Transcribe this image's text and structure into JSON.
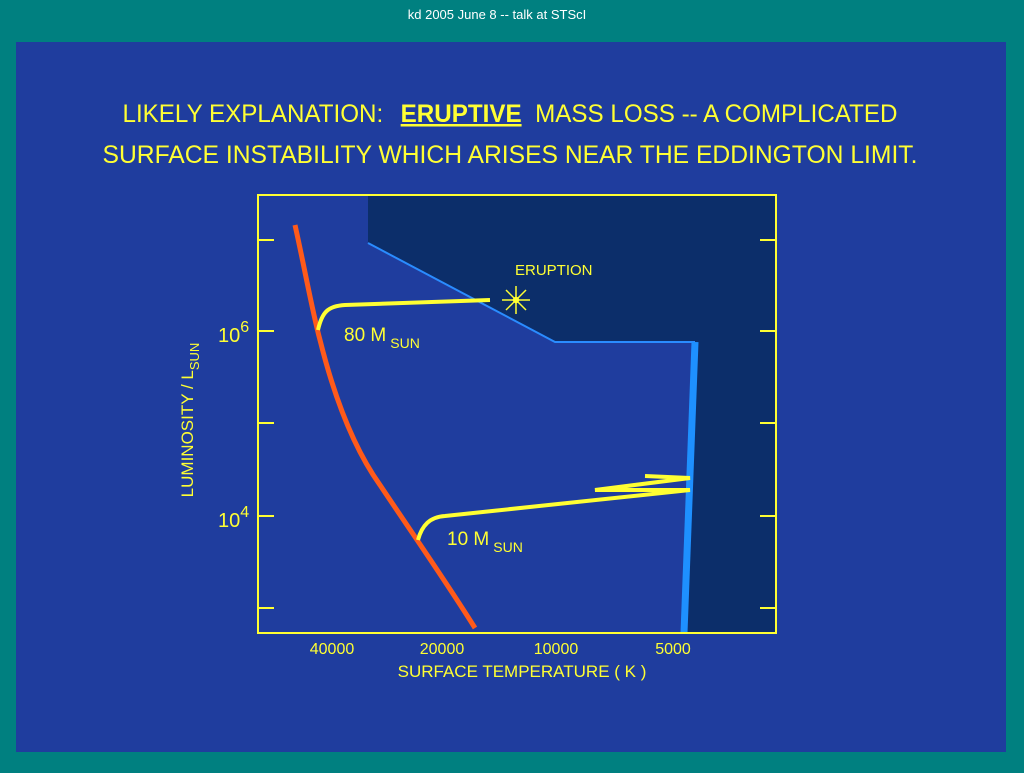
{
  "header": "kd  2005 June 8 -- talk at STScI",
  "title": {
    "line1_pre": "LIKELY  EXPLANATION:",
    "emphasis": "ERUPTIVE",
    "line1_post": "MASS  LOSS  -- A  COMPLICATED",
    "line2": "SURFACE  INSTABILITY  WHICH  ARISES  NEAR  THE  EDDINGTON  LIMIT."
  },
  "diagram": {
    "y_axis_label": {
      "main": "LUMINOSITY / L",
      "sub": "SUN"
    },
    "y_ticks": [
      {
        "base": "10",
        "exp": "6"
      },
      {
        "base": "10",
        "exp": "4"
      }
    ],
    "x_ticks": [
      "40000",
      "20000",
      "10000",
      "5000"
    ],
    "x_axis_label": "SURFACE  TEMPERATURE  ( K )",
    "eruption": "ERUPTION",
    "track_80": {
      "main": "80  M",
      "sub": "SUN"
    },
    "track_10": {
      "main": "10  M",
      "sub": "SUN"
    }
  }
}
